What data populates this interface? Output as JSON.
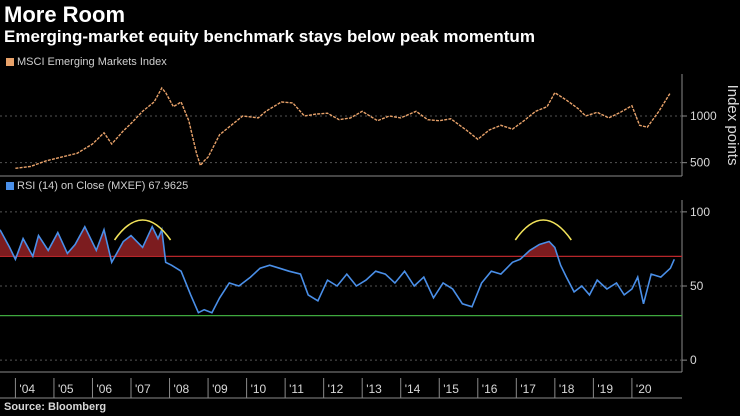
{
  "title": "More Room",
  "subtitle": "Emerging-market equity benchmark stays below peak momentum",
  "source": "Source: Bloomberg",
  "colors": {
    "price": "#e8a26a",
    "rsi": "#4a8fe8",
    "overbought": "#c0282d",
    "oversold": "#3ea83e",
    "highlight": "#f2e35a",
    "fill": "#8a1f22"
  },
  "chart_data": [
    {
      "type": "line",
      "name": "price-panel",
      "legend": "MSCI Emerging Markets Index",
      "ylabel": "Index points",
      "yticks": [
        500,
        1000
      ],
      "ylim": [
        400,
        1450
      ],
      "xlim": [
        2003.6,
        2021.3
      ],
      "x": [
        2004.0,
        2004.4,
        2004.8,
        2005.2,
        2005.6,
        2006.0,
        2006.3,
        2006.5,
        2006.8,
        2007.0,
        2007.3,
        2007.6,
        2007.8,
        2007.9,
        2008.1,
        2008.3,
        2008.5,
        2008.7,
        2008.8,
        2008.9,
        2009.0,
        2009.3,
        2009.6,
        2009.9,
        2010.3,
        2010.5,
        2010.9,
        2011.2,
        2011.5,
        2011.8,
        2012.1,
        2012.4,
        2012.7,
        2013.0,
        2013.4,
        2013.7,
        2014.0,
        2014.4,
        2014.7,
        2015.0,
        2015.3,
        2015.7,
        2016.0,
        2016.3,
        2016.6,
        2016.9,
        2017.2,
        2017.5,
        2017.8,
        2018.0,
        2018.3,
        2018.6,
        2018.8,
        2019.1,
        2019.4,
        2019.7,
        2020.0,
        2020.2,
        2020.4,
        2020.7,
        2021.0
      ],
      "values": [
        440,
        460,
        520,
        560,
        600,
        700,
        820,
        700,
        840,
        920,
        1050,
        1150,
        1300,
        1250,
        1100,
        1150,
        950,
        600,
        470,
        520,
        560,
        800,
        900,
        1000,
        980,
        1050,
        1150,
        1140,
        1000,
        1020,
        1030,
        960,
        980,
        1050,
        950,
        1000,
        980,
        1050,
        960,
        950,
        970,
        850,
        750,
        850,
        900,
        860,
        950,
        1050,
        1100,
        1250,
        1170,
        1080,
        1000,
        1040,
        980,
        1040,
        1110,
        900,
        880,
        1050,
        1250
      ]
    },
    {
      "type": "line",
      "name": "rsi-panel",
      "legend": "RSI (14)  on Close (MXEF) 67.9625",
      "yticks": [
        0,
        50,
        100
      ],
      "ylim": [
        -8,
        108
      ],
      "overbought": 70,
      "oversold": 30,
      "xlim": [
        2003.6,
        2021.3
      ],
      "x": [
        2003.6,
        2003.85,
        2004.0,
        2004.2,
        2004.45,
        2004.6,
        2004.85,
        2005.1,
        2005.35,
        2005.55,
        2005.8,
        2006.1,
        2006.3,
        2006.5,
        2006.8,
        2007.0,
        2007.3,
        2007.55,
        2007.7,
        2007.8,
        2007.9,
        2008.05,
        2008.3,
        2008.55,
        2008.75,
        2008.9,
        2009.1,
        2009.3,
        2009.55,
        2009.8,
        2010.1,
        2010.35,
        2010.6,
        2010.85,
        2011.1,
        2011.4,
        2011.6,
        2011.85,
        2012.1,
        2012.35,
        2012.6,
        2012.85,
        2013.1,
        2013.35,
        2013.6,
        2013.85,
        2014.1,
        2014.35,
        2014.6,
        2014.85,
        2015.1,
        2015.35,
        2015.6,
        2015.85,
        2016.1,
        2016.35,
        2016.6,
        2016.9,
        2017.1,
        2017.35,
        2017.6,
        2017.85,
        2018.0,
        2018.15,
        2018.3,
        2018.5,
        2018.7,
        2018.9,
        2019.1,
        2019.35,
        2019.6,
        2019.8,
        2020.0,
        2020.15,
        2020.3,
        2020.5,
        2020.75,
        2021.0,
        2021.1
      ],
      "values": [
        88,
        76,
        68,
        82,
        70,
        84,
        74,
        86,
        72,
        78,
        90,
        74,
        88,
        66,
        80,
        84,
        76,
        90,
        82,
        88,
        66,
        64,
        60,
        44,
        32,
        34,
        32,
        42,
        52,
        50,
        56,
        62,
        64,
        62,
        60,
        58,
        44,
        40,
        54,
        50,
        58,
        50,
        54,
        60,
        58,
        52,
        60,
        50,
        56,
        42,
        52,
        48,
        38,
        36,
        52,
        60,
        58,
        66,
        68,
        74,
        78,
        80,
        76,
        64,
        56,
        46,
        50,
        44,
        54,
        48,
        52,
        44,
        48,
        56,
        38,
        58,
        56,
        62,
        68
      ]
    }
  ],
  "xaxis": {
    "labels": [
      "'04",
      "'05",
      "'06",
      "'07",
      "'08",
      "'09",
      "'10",
      "'11",
      "'12",
      "'13",
      "'14",
      "'15",
      "'16",
      "'17",
      "'18",
      "'19",
      "'20"
    ],
    "years": [
      2004,
      2005,
      2006,
      2007,
      2008,
      2009,
      2010,
      2011,
      2012,
      2013,
      2014,
      2015,
      2016,
      2017,
      2018,
      2019,
      2020
    ]
  },
  "annotations": [
    {
      "name": "highlight-arc-2007",
      "x": 2007.3
    },
    {
      "name": "highlight-arc-2017",
      "x": 2017.7
    }
  ]
}
